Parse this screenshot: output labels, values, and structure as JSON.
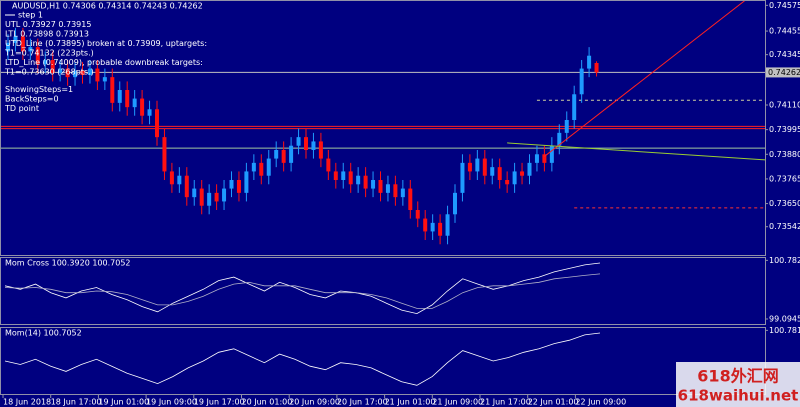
{
  "chart_data": {
    "type": "candlestick",
    "title": "AUDUSD,H1  0.74306 0.74314 0.74243 0.74262",
    "annotations": [
      "step 1",
      "UTL 0.73927  0.73915",
      "LTL 0.73898  0.73913",
      "UTD_Line (0.73895) broken at 0.73909, uptargets:",
      "T1=0.74132 (223pts.)",
      "LTD_Line (0.74009), probable downbreak targets:",
      "T1=0.73630 (268pts.)",
      "ShowingSteps=1",
      "BackSteps=0",
      "TD point"
    ],
    "open": [
      0.7436,
      0.744,
      0.7443,
      0.7436,
      0.7438,
      0.743,
      0.7432,
      0.7426,
      0.7428,
      0.7424,
      0.7427,
      0.7425,
      0.7428,
      0.7422,
      0.7424,
      0.7412,
      0.7418,
      0.741,
      0.7414,
      0.7406,
      0.7409,
      0.7396,
      0.738,
      0.7374,
      0.7378,
      0.7368,
      0.7372,
      0.7364,
      0.737,
      0.7366,
      0.7372,
      0.7376,
      0.737,
      0.738,
      0.7384,
      0.7378,
      0.7386,
      0.739,
      0.7384,
      0.7392,
      0.7396,
      0.739,
      0.7394,
      0.7386,
      0.738,
      0.7376,
      0.738,
      0.7374,
      0.7378,
      0.7372,
      0.7376,
      0.737,
      0.7374,
      0.7368,
      0.7372,
      0.7362,
      0.7358,
      0.7352,
      0.7356,
      0.735,
      0.736,
      0.737,
      0.7384,
      0.738,
      0.7386,
      0.7378,
      0.7382,
      0.7376,
      0.7374,
      0.738,
      0.7378,
      0.7384,
      0.7388,
      0.7384,
      0.7392,
      0.7398,
      0.7404,
      0.7416,
      0.7428,
      0.74306
    ],
    "high": [
      0.7444,
      0.7447,
      0.7447,
      0.7442,
      0.7442,
      0.7436,
      0.7436,
      0.7432,
      0.7432,
      0.7431,
      0.7431,
      0.7432,
      0.7432,
      0.7428,
      0.7428,
      0.7422,
      0.7422,
      0.7418,
      0.7418,
      0.7413,
      0.7413,
      0.74,
      0.7384,
      0.7382,
      0.7382,
      0.7376,
      0.7376,
      0.7374,
      0.7374,
      0.7376,
      0.738,
      0.738,
      0.7384,
      0.7388,
      0.7388,
      0.739,
      0.7394,
      0.7394,
      0.7396,
      0.74,
      0.74,
      0.7398,
      0.7398,
      0.739,
      0.7384,
      0.7384,
      0.7384,
      0.7382,
      0.7382,
      0.738,
      0.738,
      0.7378,
      0.7378,
      0.7376,
      0.7376,
      0.7366,
      0.7362,
      0.736,
      0.736,
      0.7364,
      0.7374,
      0.7388,
      0.7388,
      0.739,
      0.739,
      0.7386,
      0.7386,
      0.738,
      0.7384,
      0.7384,
      0.7388,
      0.7392,
      0.7392,
      0.7396,
      0.7402,
      0.7408,
      0.742,
      0.7432,
      0.7438,
      0.74314
    ],
    "low": [
      0.7432,
      0.7436,
      0.7432,
      0.7432,
      0.7426,
      0.7426,
      0.7422,
      0.7422,
      0.742,
      0.742,
      0.7421,
      0.7421,
      0.7418,
      0.7418,
      0.7408,
      0.7408,
      0.7406,
      0.7406,
      0.7402,
      0.7402,
      0.7392,
      0.7376,
      0.737,
      0.737,
      0.7364,
      0.7364,
      0.736,
      0.736,
      0.7362,
      0.7362,
      0.7368,
      0.7366,
      0.7366,
      0.7376,
      0.7374,
      0.7374,
      0.7382,
      0.738,
      0.738,
      0.7388,
      0.7386,
      0.7386,
      0.7382,
      0.7376,
      0.7372,
      0.7372,
      0.737,
      0.737,
      0.7368,
      0.7368,
      0.7366,
      0.7366,
      0.7364,
      0.7364,
      0.7358,
      0.7354,
      0.7348,
      0.7348,
      0.7346,
      0.7346,
      0.7356,
      0.7366,
      0.7376,
      0.7376,
      0.7374,
      0.7374,
      0.7372,
      0.737,
      0.737,
      0.7374,
      0.7374,
      0.738,
      0.738,
      0.738,
      0.7388,
      0.7394,
      0.74,
      0.7412,
      0.7424,
      0.74243
    ],
    "close": [
      0.744,
      0.7443,
      0.7436,
      0.7438,
      0.743,
      0.7432,
      0.7426,
      0.7428,
      0.7424,
      0.7427,
      0.7425,
      0.7428,
      0.7422,
      0.7424,
      0.7412,
      0.7418,
      0.741,
      0.7414,
      0.7406,
      0.7409,
      0.7396,
      0.738,
      0.7374,
      0.7378,
      0.7368,
      0.7372,
      0.7364,
      0.737,
      0.7366,
      0.7372,
      0.7376,
      0.737,
      0.738,
      0.7384,
      0.7378,
      0.7386,
      0.739,
      0.7384,
      0.7392,
      0.7396,
      0.739,
      0.7394,
      0.7386,
      0.738,
      0.7376,
      0.738,
      0.7374,
      0.7378,
      0.7372,
      0.7376,
      0.737,
      0.7374,
      0.7368,
      0.7372,
      0.7362,
      0.7358,
      0.7352,
      0.7356,
      0.735,
      0.736,
      0.737,
      0.7384,
      0.738,
      0.7386,
      0.7378,
      0.7382,
      0.7376,
      0.7374,
      0.738,
      0.7378,
      0.7384,
      0.7388,
      0.7384,
      0.7392,
      0.7398,
      0.7404,
      0.7416,
      0.7428,
      0.7434,
      0.74262
    ],
    "up_color": "#1e9bff",
    "down_color": "#ff1010",
    "ylim": [
      0.7341,
      0.746
    ],
    "yticks": [
      0.74575,
      0.74455,
      0.74345,
      {
        "value": 0.7411,
        "label": "0.74110"
      },
      0.73995,
      {
        "value": 0.7388,
        "label": "0.73880"
      },
      0.73765,
      {
        "value": 0.7365,
        "label": "0.73650"
      },
      0.73542
    ],
    "last_price": 0.74262,
    "hlines": [
      {
        "value": 0.74262,
        "color": "#c0c0c0"
      },
      {
        "value": 0.7401,
        "color": "#ff2020"
      },
      {
        "value": 0.74,
        "color": "#ff2020"
      },
      {
        "value": 0.73909,
        "color": "#a0c8a0"
      }
    ],
    "dashed_lines": [
      {
        "value": 0.74132,
        "from": 71,
        "color": "#d0d0a0"
      },
      {
        "value": 0.7363,
        "from": 76,
        "color": "#ff3030"
      }
    ],
    "trend_lines": [
      {
        "color": "#ff2020",
        "from": [
          72,
          0.7387
        ],
        "to": [
          99,
          0.746
        ]
      },
      {
        "color": "#9acd32",
        "from": [
          67,
          0.73933
        ],
        "to": [
          102,
          0.73853
        ]
      }
    ],
    "xtick_labels": [
      "18 Jun 2018",
      "18 Jun 17:00",
      "19 Jun 01:00",
      "19 Jun 09:00",
      "19 Jun 17:00",
      "20 Jun 01:00",
      "20 Jun 09:00",
      "20 Jun 17:00",
      "21 Jun 01:00",
      "21 Jun 09:00",
      "21 Jun 17:00",
      "22 Jun 01:00",
      "22 Jun 09:00"
    ],
    "indicators": [
      {
        "title": "Mom Cross 100.3920 100.7052",
        "ylim": [
          98.95,
          100.85
        ],
        "yticks": [
          {
            "value": 100.782,
            "label": "100.7820"
          },
          99.0945
        ],
        "series": [
          {
            "color": "#ffffff",
            "values": [
              100.05,
              99.95,
              100.1,
              99.85,
              99.7,
              99.9,
              100.0,
              99.8,
              99.65,
              99.45,
              99.3,
              99.55,
              99.75,
              99.95,
              100.2,
              100.3,
              100.1,
              99.9,
              100.15,
              100.0,
              99.8,
              99.7,
              99.9,
              99.85,
              99.75,
              99.55,
              99.35,
              99.25,
              99.5,
              99.9,
              100.25,
              100.1,
              99.95,
              100.05,
              100.2,
              100.3,
              100.45,
              100.55,
              100.65,
              100.7052
            ]
          },
          {
            "color": "#b0b0c8",
            "values": [
              100.0,
              99.98,
              100.0,
              99.95,
              99.85,
              99.85,
              99.9,
              99.88,
              99.8,
              99.65,
              99.5,
              99.5,
              99.6,
              99.75,
              99.95,
              100.1,
              100.15,
              100.05,
              100.05,
              100.05,
              99.95,
              99.85,
              99.85,
              99.85,
              99.8,
              99.7,
              99.55,
              99.4,
              99.4,
              99.6,
              99.85,
              100.0,
              100.05,
              100.05,
              100.1,
              100.15,
              100.25,
              100.3,
              100.35,
              100.392
            ]
          }
        ]
      },
      {
        "title": "Mom(14) 100.7052",
        "ylim": [
          98.95,
          100.85
        ],
        "yticks": [
          100.7819
        ],
        "series": [
          {
            "color": "#ffffff",
            "values": [
              99.9,
              99.8,
              99.95,
              99.75,
              99.6,
              99.8,
              99.95,
              99.75,
              99.55,
              99.4,
              99.25,
              99.45,
              99.7,
              99.9,
              100.15,
              100.25,
              100.05,
              99.85,
              100.1,
              99.95,
              99.75,
              99.65,
              99.85,
              99.8,
              99.7,
              99.5,
              99.3,
              99.2,
              99.45,
              99.85,
              100.2,
              100.05,
              99.9,
              100.0,
              100.15,
              100.25,
              100.4,
              100.5,
              100.65,
              100.7052
            ]
          }
        ]
      }
    ],
    "watermark": [
      "618外汇网",
      "618waihui.net"
    ]
  }
}
